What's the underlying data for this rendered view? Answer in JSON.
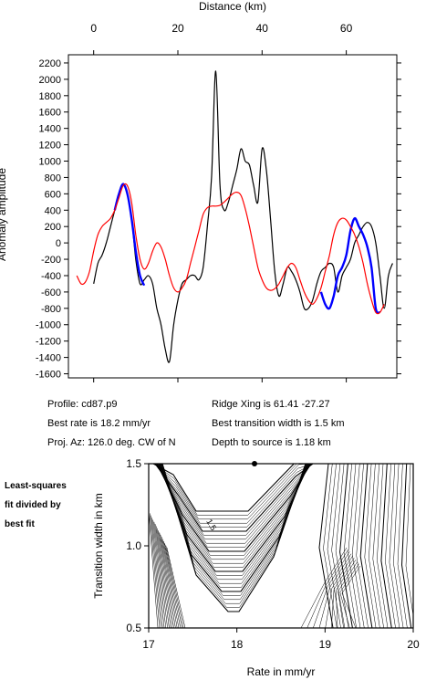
{
  "chart_data": [
    {
      "type": "line",
      "title": "",
      "xlabel": "Distance (km)",
      "ylabel": "Anomaly amplitude",
      "xlim": [
        -6,
        72
      ],
      "ylim": [
        -1650,
        2300
      ],
      "x_ticks": [
        "0",
        "20",
        "40",
        "60"
      ],
      "y_ticks": [
        "2200",
        "2000",
        "1800",
        "1600",
        "1400",
        "1200",
        "1000",
        "800",
        "600",
        "400",
        "200",
        "0",
        "-200",
        "-400",
        "-600",
        "-800",
        "-1000",
        "-1200",
        "-1400",
        "-1600"
      ],
      "series": [
        {
          "color": "#000000",
          "x": [
            0,
            1,
            2,
            3,
            4,
            5,
            6,
            7,
            8,
            9,
            10,
            11,
            12,
            13,
            14,
            15,
            16,
            17,
            18,
            19,
            20,
            21,
            22,
            23,
            24,
            25,
            26,
            27,
            28,
            29,
            30,
            31,
            32,
            33,
            34,
            35,
            36,
            37,
            38,
            39,
            40,
            41,
            42,
            43,
            44,
            45,
            46,
            47,
            48,
            49,
            50,
            51,
            52,
            53,
            54,
            55,
            56,
            57,
            58,
            59,
            60,
            61,
            62,
            63,
            64,
            65,
            66,
            67,
            68,
            69,
            70,
            71
          ],
          "values": [
            -500,
            -250,
            -150,
            0,
            200,
            400,
            600,
            720,
            600,
            300,
            -200,
            -500,
            -450,
            -400,
            -500,
            -800,
            -1000,
            -1300,
            -1450,
            -1000,
            -700,
            -500,
            -450,
            -400,
            -400,
            -450,
            -300,
            200,
            800,
            2100,
            700,
            400,
            500,
            700,
            900,
            1150,
            1000,
            950,
            700,
            500,
            1150,
            900,
            300,
            -350,
            -650,
            -500,
            -300,
            -350,
            -450,
            -600,
            -800,
            -800,
            -700,
            -500,
            -350,
            -300,
            -250,
            -300,
            -600,
            -400,
            -300,
            -200,
            0,
            100,
            200,
            250,
            200,
            0,
            -400,
            -800,
            -400,
            -250
          ]
        },
        {
          "color": "#0000ff",
          "x": [
            5,
            6,
            7,
            8,
            9,
            10,
            11,
            12,
            54,
            55,
            56,
            57,
            58,
            59,
            60,
            61,
            62,
            63,
            64,
            65,
            66,
            67,
            68
          ],
          "values": [
            400,
            600,
            720,
            600,
            300,
            -100,
            -400,
            -520,
            -600,
            -750,
            -800,
            -650,
            -400,
            -300,
            -150,
            150,
            300,
            200,
            100,
            -50,
            -300,
            -800,
            -850
          ]
        },
        {
          "color": "#ff0000",
          "x": [
            -4,
            -3,
            -2,
            -1,
            0,
            1,
            2,
            3,
            4,
            5,
            6,
            7,
            8,
            9,
            10,
            11,
            12,
            13,
            14,
            15,
            16,
            17,
            18,
            19,
            20,
            21,
            22,
            23,
            24,
            25,
            26,
            27,
            28,
            29,
            30,
            31,
            32,
            33,
            34,
            35,
            36,
            37,
            38,
            39,
            40,
            41,
            42,
            43,
            44,
            45,
            46,
            47,
            48,
            49,
            50,
            51,
            52,
            53,
            54,
            55,
            56,
            57,
            58,
            59,
            60,
            61,
            62,
            63,
            64,
            65,
            66,
            67,
            68,
            69
          ],
          "values": [
            -400,
            -500,
            -480,
            -350,
            -100,
            100,
            200,
            250,
            300,
            400,
            550,
            700,
            700,
            500,
            100,
            -200,
            -320,
            -250,
            -100,
            0,
            -50,
            -200,
            -400,
            -550,
            -600,
            -550,
            -450,
            -250,
            -50,
            150,
            350,
            430,
            450,
            450,
            460,
            500,
            550,
            600,
            620,
            580,
            420,
            200,
            -50,
            -300,
            -450,
            -550,
            -580,
            -560,
            -500,
            -400,
            -300,
            -250,
            -300,
            -450,
            -600,
            -700,
            -750,
            -680,
            -550,
            -350,
            -150,
            100,
            250,
            300,
            280,
            200,
            100,
            -50,
            -250,
            -500,
            -700,
            -850,
            -850,
            -750
          ]
        }
      ]
    },
    {
      "type": "heatmap",
      "title": "",
      "xlabel": "Rate in mm/yr",
      "ylabel": "Transition width in km",
      "xlim": [
        17,
        20
      ],
      "ylim": [
        0.5,
        1.5
      ],
      "x_ticks": [
        "17",
        "18",
        "19",
        "20"
      ],
      "y_ticks": [
        "0.5",
        "1.0",
        "1.5"
      ],
      "best_point": [
        18.2,
        1.5
      ],
      "contour_label": "1.5"
    }
  ],
  "info": {
    "profile": "Profile: cd87.p9",
    "ridge": "Ridge Xing is 61.41 -27.27",
    "best_rate": "Best rate is 18.2 mm/yr",
    "best_width": "Best transition width is 1.5 km",
    "proj": "Proj. Az: 126.0 deg. CW of N",
    "depth": "Depth to source is    1.18 km"
  },
  "side_label": {
    "line1": "Least-squares",
    "line2": "fit divided by",
    "line3": "best fit"
  }
}
